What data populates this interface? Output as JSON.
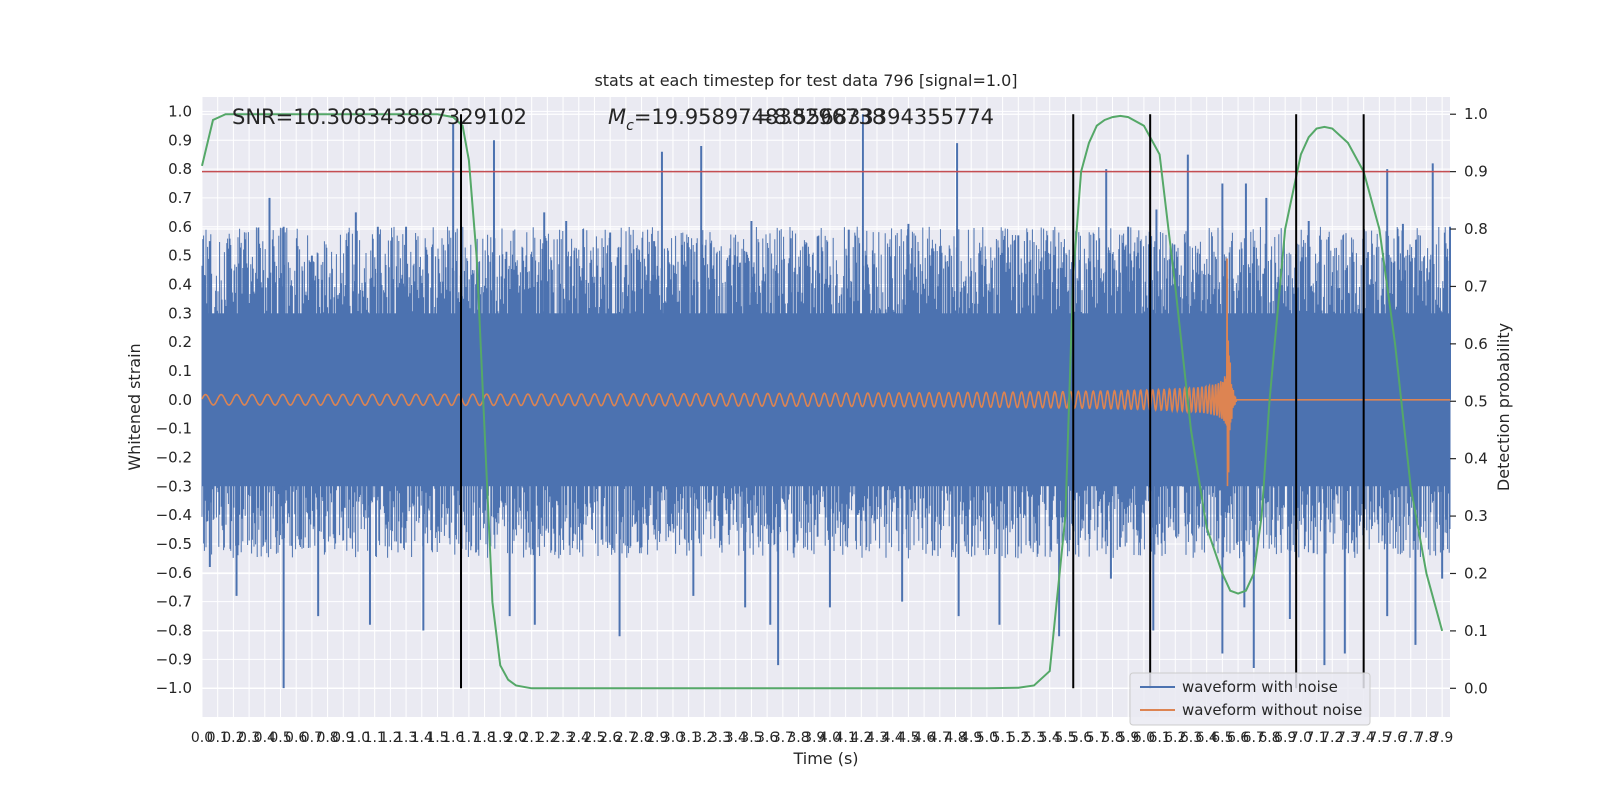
{
  "chart_data": {
    "type": "line",
    "title": "stats at each timestep for test data 796 [signal=1.0]",
    "xlabel": "Time (s)",
    "ylabel": "Whitened strain",
    "y2label": "Detection probability",
    "xlim": [
      0.0,
      7.95
    ],
    "ylim": [
      -1.1,
      1.05
    ],
    "y2lim": [
      -0.05,
      1.03
    ],
    "x_ticks": [
      0.0,
      0.1,
      0.2,
      0.3,
      0.4,
      0.5,
      0.6,
      0.7,
      0.8,
      0.9,
      1.0,
      1.1,
      1.2,
      1.3,
      1.4,
      1.5,
      1.6,
      1.7,
      1.8,
      1.9,
      2.0,
      2.1,
      2.2,
      2.3,
      2.4,
      2.5,
      2.6,
      2.7,
      2.8,
      2.9,
      3.0,
      3.1,
      3.2,
      3.3,
      3.4,
      3.5,
      3.6,
      3.7,
      3.8,
      3.9,
      4.0,
      4.1,
      4.2,
      4.3,
      4.4,
      4.5,
      4.6,
      4.7,
      4.8,
      4.9,
      5.0,
      5.1,
      5.2,
      5.3,
      5.4,
      5.5,
      5.6,
      5.7,
      5.8,
      5.9,
      6.0,
      6.1,
      6.2,
      6.3,
      6.4,
      6.5,
      6.6,
      6.7,
      6.8,
      6.9,
      7.0,
      7.1,
      7.2,
      7.3,
      7.4,
      7.5,
      7.6,
      7.7,
      7.8,
      7.9
    ],
    "x_tick_labels": [
      "0.0",
      "0.1",
      "0.2",
      "0.3",
      "0.4",
      "0.5",
      "0.6",
      "0.7",
      "0.8",
      "0.9",
      "1.0",
      "1.1",
      "1.2",
      "1.3",
      "1.4",
      "1.5",
      "1.6",
      "1.7",
      "1.8",
      "1.9",
      "2.0",
      "2.1",
      "2.2",
      "2.3",
      "2.4",
      "2.5",
      "2.6",
      "2.7",
      "2.8",
      "2.9",
      "3.0",
      "3.1",
      "3.2",
      "3.3",
      "3.4",
      "3.5",
      "3.6",
      "3.7",
      "3.8",
      "3.9",
      "4.0",
      "4.1",
      "4.2",
      "4.3",
      "4.4",
      "4.5",
      "4.6",
      "4.7",
      "4.8",
      "4.9",
      "5.0",
      "5.1",
      "5.2",
      "5.3",
      "5.4",
      "5.5",
      "5.6",
      "5.7",
      "5.8",
      "5.9",
      "6.0",
      "6.1",
      "6.2",
      "6.3",
      "6.4",
      "6.5",
      "6.6",
      "6.7",
      "6.8",
      "6.9",
      "7.0",
      "7.1",
      "7.2",
      "7.3",
      "7.4",
      "7.5",
      "7.6",
      "7.7",
      "7.8",
      "7.9"
    ],
    "y_ticks": [
      1.0,
      0.9,
      0.8,
      0.7,
      0.6,
      0.5,
      0.4,
      0.3,
      0.2,
      0.1,
      0.0,
      -0.1,
      -0.2,
      -0.3,
      -0.4,
      -0.5,
      -0.6,
      -0.7,
      -0.8,
      -0.9,
      -1.0
    ],
    "y_tick_labels": [
      "1.0",
      "0.9",
      "0.8",
      "0.7",
      "0.6",
      "0.5",
      "0.4",
      "0.3",
      "0.2",
      "0.1",
      "0.0",
      "−0.1",
      "−0.2",
      "−0.3",
      "−0.4",
      "−0.5",
      "−0.6",
      "−0.7",
      "−0.8",
      "−0.9",
      "−1.0"
    ],
    "y2_ticks": [
      1.0,
      0.9,
      0.8,
      0.7,
      0.6,
      0.5,
      0.4,
      0.3,
      0.2,
      0.1,
      0.0
    ],
    "y2_tick_labels": [
      "1.0",
      "0.9",
      "0.8",
      "0.7",
      "0.6",
      "0.5",
      "0.4",
      "0.3",
      "0.2",
      "0.1",
      "0.0"
    ],
    "annotations": {
      "snr": "SNR=10.308343887329102",
      "mc_symbol": "M",
      "mc_sub": "c",
      "mc_value": "=19.958974838296738",
      "mc_overlap": "=8.556833394355774"
    },
    "series": [
      {
        "name": "waveform with noise",
        "color": "#4c72b0",
        "style": "noise",
        "band_low": -0.55,
        "band_high": 0.6,
        "spikes_up": [
          [
            0.05,
            0.55
          ],
          [
            0.43,
            0.7
          ],
          [
            0.52,
            0.6
          ],
          [
            0.7,
            0.5
          ],
          [
            0.98,
            0.65
          ],
          [
            1.12,
            0.6
          ],
          [
            1.3,
            0.6
          ],
          [
            1.6,
            0.96
          ],
          [
            1.86,
            0.9
          ],
          [
            2.18,
            0.65
          ],
          [
            2.32,
            0.62
          ],
          [
            2.6,
            0.58
          ],
          [
            2.88,
            0.55
          ],
          [
            2.93,
            0.86
          ],
          [
            3.18,
            0.88
          ],
          [
            3.5,
            0.62
          ],
          [
            3.75,
            0.56
          ],
          [
            4.12,
            0.59
          ],
          [
            4.21,
            0.99
          ],
          [
            4.5,
            0.61
          ],
          [
            4.81,
            0.89
          ],
          [
            5.2,
            0.57
          ],
          [
            5.55,
            0.5
          ],
          [
            5.76,
            0.8
          ],
          [
            5.9,
            0.6
          ],
          [
            6.08,
            0.66
          ],
          [
            6.28,
            0.85
          ],
          [
            6.5,
            0.75
          ],
          [
            6.65,
            0.75
          ],
          [
            6.78,
            0.7
          ],
          [
            7.05,
            0.62
          ],
          [
            7.55,
            0.8
          ],
          [
            7.65,
            0.61
          ],
          [
            7.84,
            0.82
          ],
          [
            7.95,
            0.6
          ]
        ],
        "spikes_down": [
          [
            0.05,
            -0.58
          ],
          [
            0.22,
            -0.68
          ],
          [
            0.52,
            -1.0
          ],
          [
            0.74,
            -0.75
          ],
          [
            1.07,
            -0.78
          ],
          [
            1.41,
            -0.8
          ],
          [
            1.65,
            -0.55
          ],
          [
            1.96,
            -0.75
          ],
          [
            2.12,
            -0.78
          ],
          [
            2.66,
            -0.82
          ],
          [
            3.13,
            -0.68
          ],
          [
            3.46,
            -0.72
          ],
          [
            3.62,
            -0.78
          ],
          [
            3.67,
            -0.92
          ],
          [
            4.0,
            -0.72
          ],
          [
            4.46,
            -0.7
          ],
          [
            4.82,
            -0.75
          ],
          [
            5.08,
            -0.78
          ],
          [
            5.46,
            -0.82
          ],
          [
            5.79,
            -0.62
          ],
          [
            6.06,
            -0.8
          ],
          [
            6.5,
            -0.88
          ],
          [
            6.64,
            -0.72
          ],
          [
            6.7,
            -0.93
          ],
          [
            6.93,
            -0.76
          ],
          [
            7.15,
            -0.92
          ],
          [
            7.28,
            -0.88
          ],
          [
            7.55,
            -0.75
          ],
          [
            7.73,
            -0.85
          ],
          [
            7.9,
            -0.62
          ]
        ]
      },
      {
        "name": "waveform without noise",
        "color": "#dd8452",
        "style": "chirp",
        "merger_time": 6.53,
        "chirp_end_time": 6.59,
        "early_amplitude": 0.018,
        "merger_amplitude": 0.49,
        "early_frequency": 10,
        "merger_frequency": 150
      },
      {
        "name": "",
        "color": "#55a868",
        "axis": "right",
        "style": "line",
        "x": [
          0.0,
          0.07,
          0.15,
          0.3,
          0.6,
          1.0,
          1.3,
          1.5,
          1.6,
          1.66,
          1.7,
          1.75,
          1.8,
          1.85,
          1.9,
          1.95,
          2.0,
          2.1,
          2.2,
          2.5,
          3.0,
          4.0,
          5.0,
          5.2,
          5.3,
          5.4,
          5.5,
          5.55,
          5.6,
          5.65,
          5.7,
          5.75,
          5.8,
          5.85,
          5.9,
          6.0,
          6.1,
          6.2,
          6.3,
          6.4,
          6.5,
          6.55,
          6.6,
          6.65,
          6.7,
          6.75,
          6.8,
          6.9,
          7.0,
          7.05,
          7.1,
          7.15,
          7.2,
          7.3,
          7.4,
          7.5,
          7.6,
          7.7,
          7.8,
          7.9
        ],
        "y": [
          0.91,
          0.99,
          1.0,
          1.0,
          1.0,
          1.0,
          1.0,
          1.0,
          0.995,
          0.98,
          0.92,
          0.75,
          0.45,
          0.15,
          0.04,
          0.015,
          0.005,
          0.0,
          0.0,
          0.0,
          0.0,
          0.0,
          0.0,
          0.001,
          0.005,
          0.03,
          0.3,
          0.72,
          0.9,
          0.95,
          0.98,
          0.99,
          0.995,
          0.997,
          0.995,
          0.98,
          0.93,
          0.7,
          0.45,
          0.28,
          0.2,
          0.17,
          0.165,
          0.17,
          0.2,
          0.3,
          0.5,
          0.8,
          0.93,
          0.96,
          0.975,
          0.978,
          0.975,
          0.95,
          0.9,
          0.8,
          0.6,
          0.35,
          0.2,
          0.1
        ]
      }
    ],
    "hlines": [
      {
        "y2": 0.9,
        "color": "#c44e52"
      }
    ],
    "vlines": [
      {
        "x": 1.65,
        "color": "#000000"
      },
      {
        "x": 5.55,
        "color": "#000000"
      },
      {
        "x": 6.04,
        "color": "#000000"
      },
      {
        "x": 6.97,
        "color": "#000000"
      },
      {
        "x": 7.4,
        "color": "#000000"
      }
    ],
    "legend_position": "lower right",
    "grid": true,
    "background": "#eaeaf2"
  }
}
